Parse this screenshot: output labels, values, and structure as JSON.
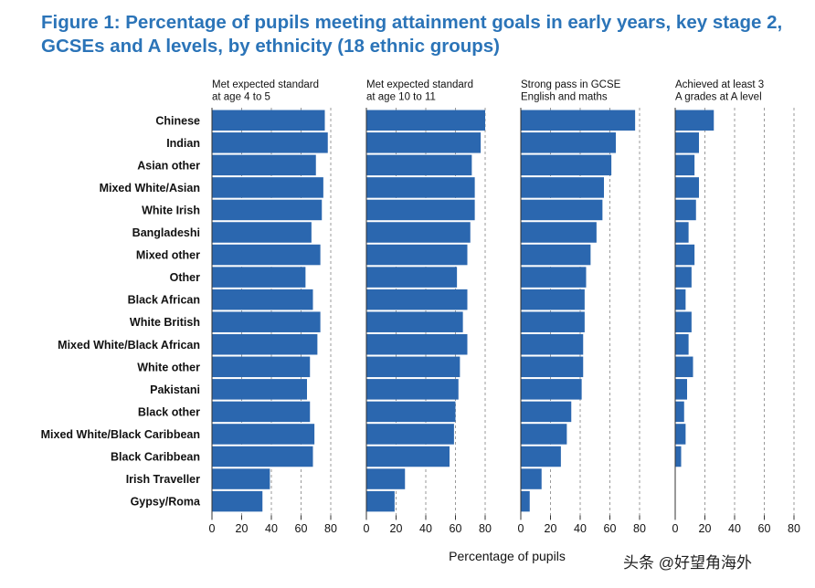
{
  "title": "Figure 1:  Percentage of pupils meeting attainment goals in early years, key stage 2, GCSEs and A levels, by ethnicity (18 ethnic groups)",
  "watermark": "头条 @好望角海外",
  "colors": {
    "bar": "#2b67af",
    "title": "#2b74b8",
    "grid": "#9a9a9a",
    "axis": "#333333"
  },
  "chart_data": {
    "type": "bar",
    "orientation": "horizontal",
    "xlabel": "Percentage of pupils",
    "xlim": [
      0,
      80
    ],
    "xticks": [
      0,
      20,
      40,
      60,
      80
    ],
    "categories": [
      "Chinese",
      "Indian",
      "Asian other",
      "Mixed White/Asian",
      "White Irish",
      "Bangladeshi",
      "Mixed other",
      "Other",
      "Black African",
      "White British",
      "Mixed White/Black African",
      "White other",
      "Pakistani",
      "Black other",
      "Mixed White/Black Caribbean",
      "Black Caribbean",
      "Irish Traveller",
      "Gypsy/Roma"
    ],
    "series": [
      {
        "name": "Met expected standard at age 4 to 5",
        "title_lines": [
          "Met expected standard",
          "at age 4 to 5"
        ],
        "values": [
          76,
          78,
          70,
          75,
          74,
          67,
          73,
          63,
          68,
          73,
          71,
          66,
          64,
          66,
          69,
          68,
          39,
          34
        ]
      },
      {
        "name": "Met expected standard at age 10 to 11",
        "title_lines": [
          "Met expected standard",
          "at age 10 to 11"
        ],
        "values": [
          80,
          77,
          71,
          73,
          73,
          70,
          68,
          61,
          68,
          65,
          68,
          63,
          62,
          60,
          59,
          56,
          26,
          19
        ]
      },
      {
        "name": "Strong pass in GCSE English and maths",
        "title_lines": [
          "Strong pass in GCSE",
          "English and maths"
        ],
        "values": [
          77,
          64,
          61,
          56,
          55,
          51,
          47,
          44,
          43,
          43,
          42,
          42,
          41,
          34,
          31,
          27,
          14,
          6
        ]
      },
      {
        "name": "Achieved at least 3 A grades at A level",
        "title_lines": [
          "Achieved at least 3",
          "A grades at A level"
        ],
        "values": [
          26,
          16,
          13,
          16,
          14,
          9,
          13,
          11,
          7,
          11,
          9,
          12,
          8,
          6,
          7,
          4,
          0,
          0
        ]
      }
    ]
  }
}
